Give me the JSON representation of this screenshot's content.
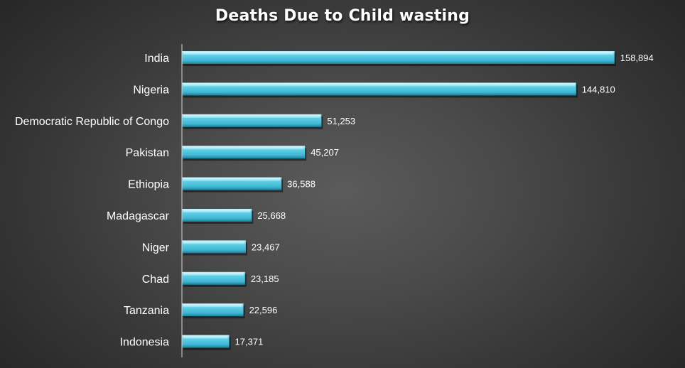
{
  "chart_data": {
    "type": "bar",
    "orientation": "horizontal",
    "title": "Deaths Due to Child wasting",
    "categories": [
      "India",
      "Nigeria",
      "Democratic Republic of Congo",
      "Pakistan",
      "Ethiopia",
      "Madagascar",
      "Niger",
      "Chad",
      "Tanzania",
      "Indonesia"
    ],
    "values": [
      158894,
      144810,
      51253,
      45207,
      36588,
      25668,
      23467,
      23185,
      22596,
      17371
    ],
    "value_labels": [
      "158,894",
      "144,810",
      "51,253",
      "45,207",
      "36,588",
      "25,668",
      "23,467",
      "23,185",
      "22,596",
      "17,371"
    ],
    "xlim": [
      0,
      160000
    ],
    "grid": false,
    "legend": "none",
    "colors": {
      "bar": "#4fc3dc",
      "bar_light": "#9ee6f5",
      "bar_dark": "#1f8aa6",
      "text": "#ffffff",
      "axis": "#d9d9d9"
    }
  }
}
